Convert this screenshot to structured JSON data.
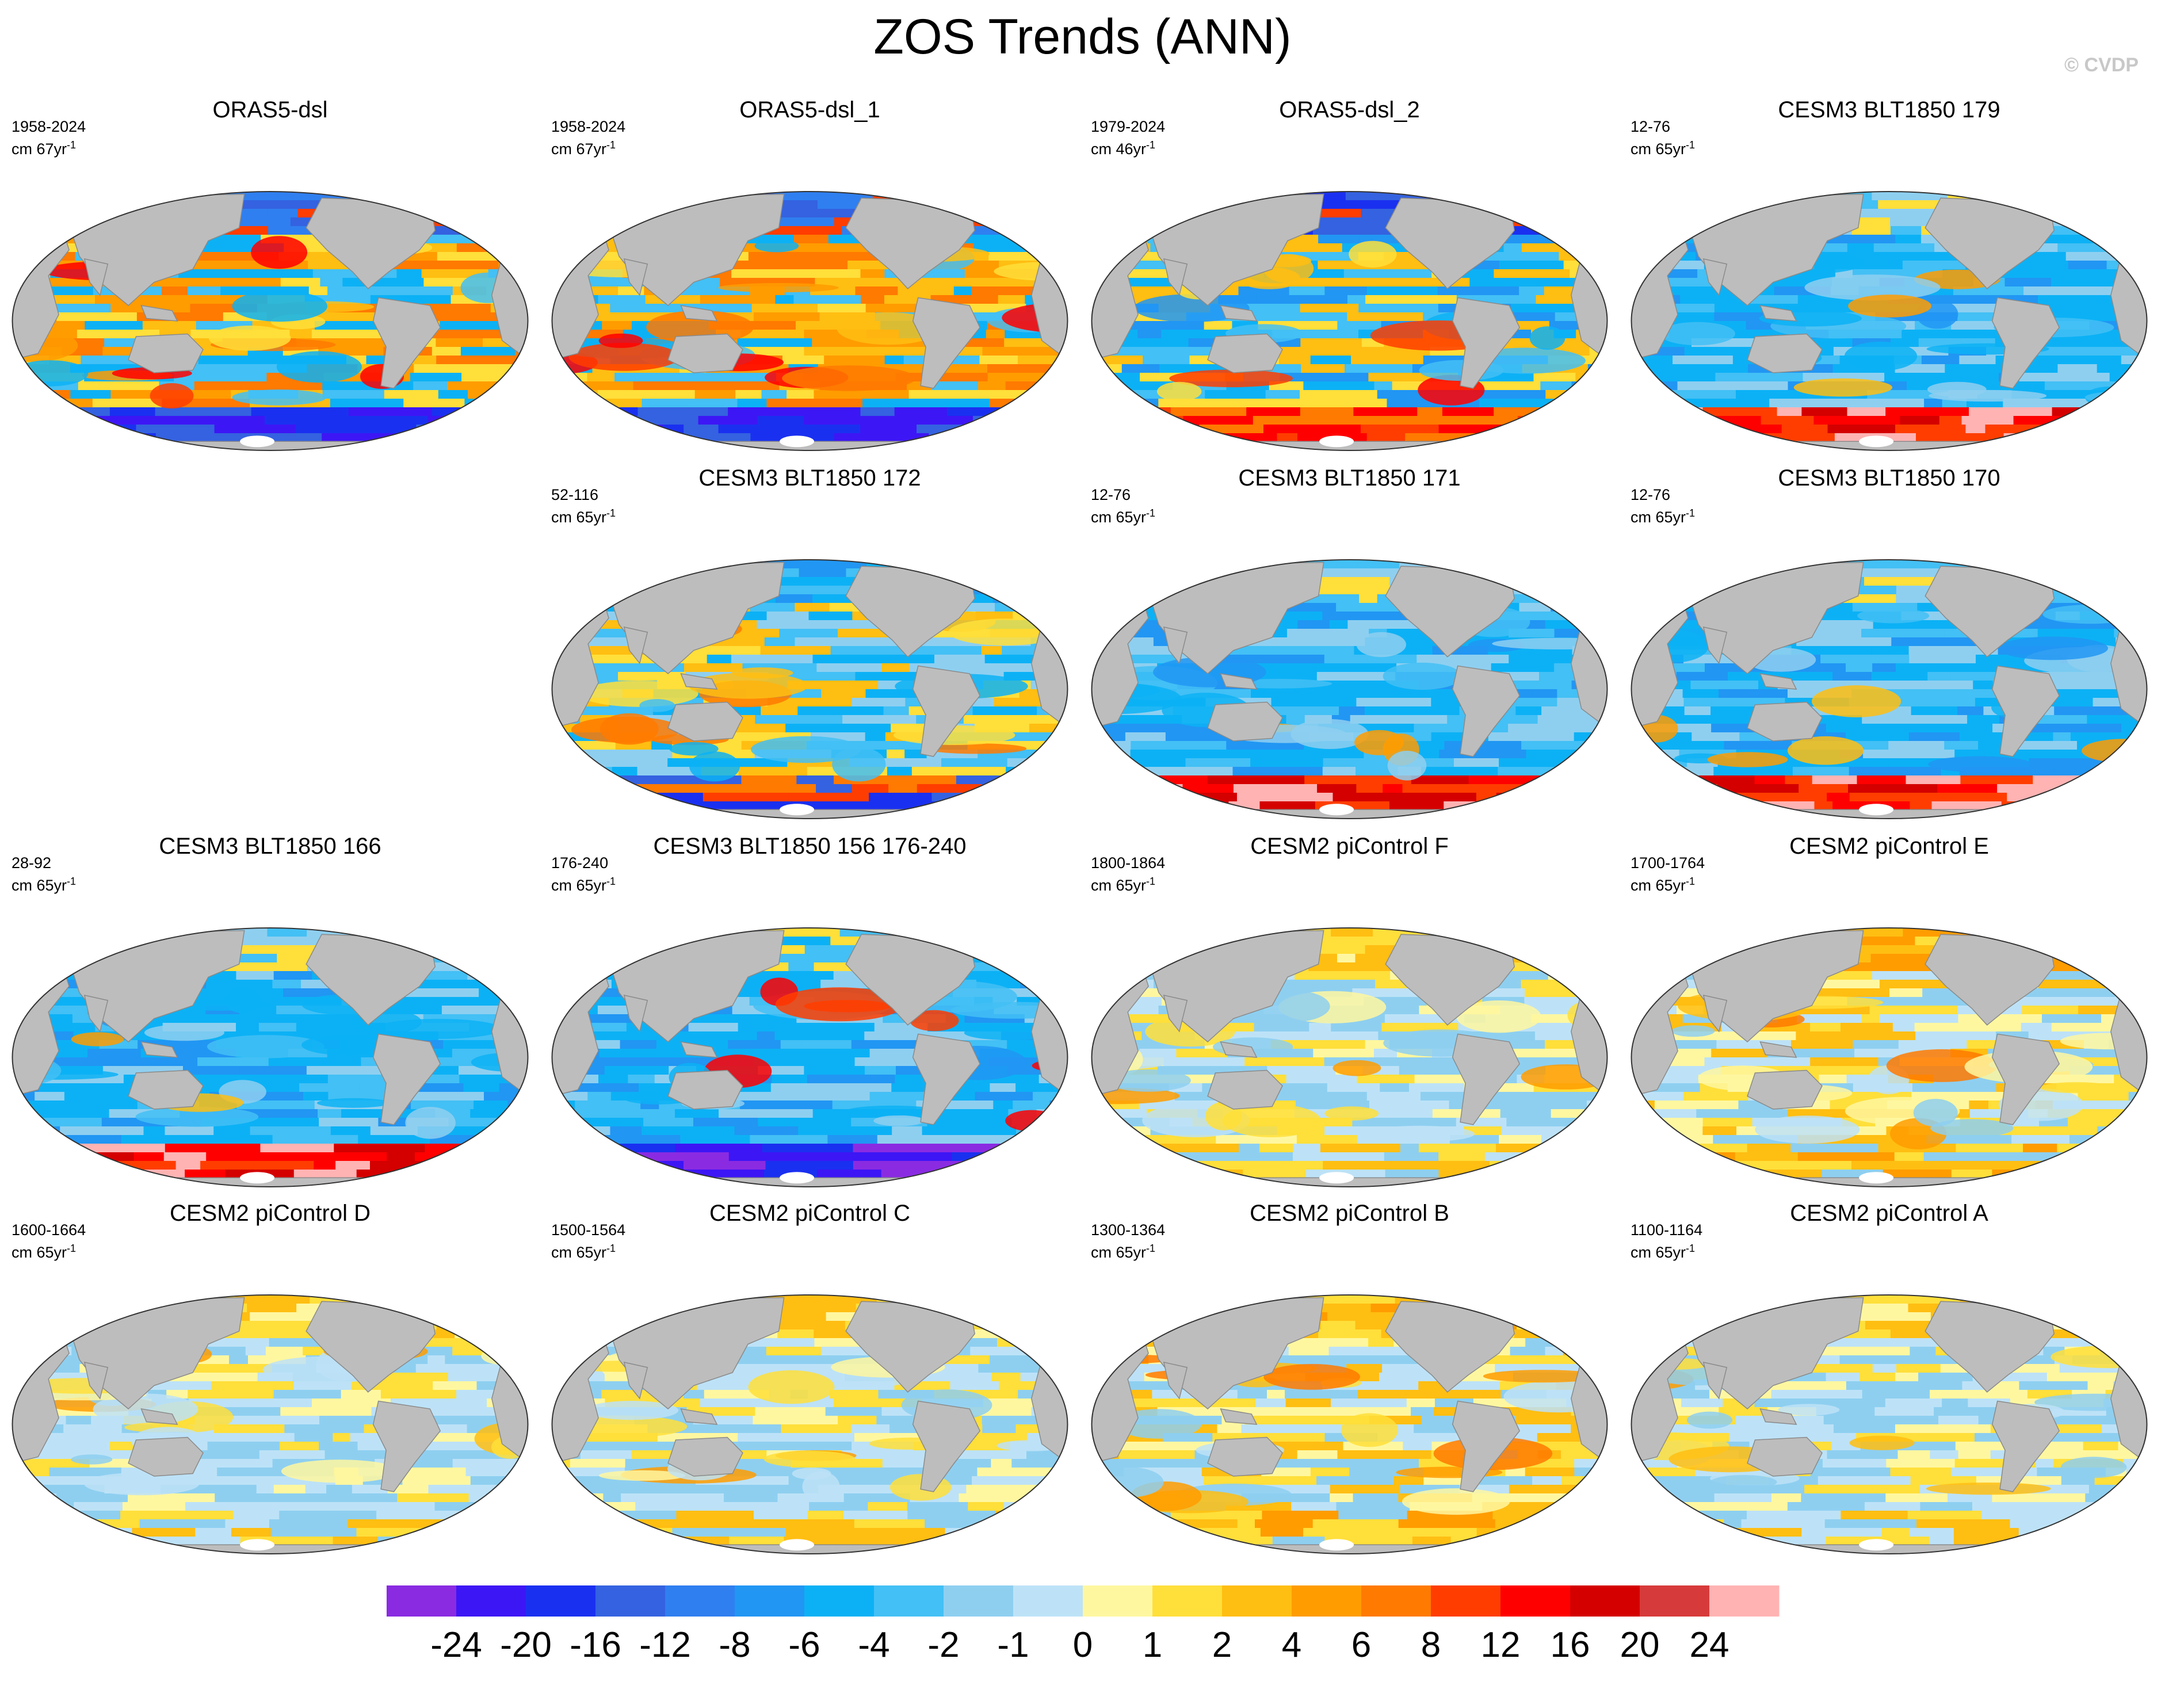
{
  "title": "ZOS Trends (ANN)",
  "watermark": "© CVDP",
  "colors": {
    "land": "#bdbdbd",
    "ocean_default": "#7cc6f2",
    "antarctic_ice": "#ffffff"
  },
  "panels": [
    {
      "title": "ORAS5-dsl",
      "years": "1958-2024",
      "units": "cm 67yr",
      "units_sup": "-1",
      "pattern": "oras5"
    },
    {
      "title": "ORAS5-dsl_1",
      "years": "1958-2024",
      "units": "cm 67yr",
      "units_sup": "-1",
      "pattern": "oras5"
    },
    {
      "title": "ORAS5-dsl_2",
      "years": "1979-2024",
      "units": "cm 46yr",
      "units_sup": "-1",
      "pattern": "oras5b"
    },
    {
      "title": "CESM3 BLT1850 179",
      "years": "12-76",
      "units": "cm 65yr",
      "units_sup": "-1",
      "pattern": "cesm3_blue_redsouth"
    },
    {
      "title": "CESM3 BLT1850 172",
      "years": "52-116",
      "units": "cm 65yr",
      "units_sup": "-1",
      "pattern": "cesm3_yellowwest"
    },
    {
      "title": "CESM3 BLT1850 171",
      "years": "12-76",
      "units": "cm 65yr",
      "units_sup": "-1",
      "pattern": "cesm3_blue_redsouth"
    },
    {
      "title": "CESM3 BLT1850 170",
      "years": "12-76",
      "units": "cm 65yr",
      "units_sup": "-1",
      "pattern": "cesm3_blue_redsouth"
    },
    {
      "title": "CESM3 BLT1850 166",
      "years": "28-92",
      "units": "cm 65yr",
      "units_sup": "-1",
      "pattern": "cesm3_blue_redsouth"
    },
    {
      "title": "CESM3 BLT1850 156 176-240",
      "years": "176-240",
      "units": "cm 65yr",
      "units_sup": "-1",
      "pattern": "cesm3_blue_purplesouth"
    },
    {
      "title": "CESM2 piControl F",
      "years": "1800-1864",
      "units": "cm 65yr",
      "units_sup": "-1",
      "pattern": "cesm2_mixed"
    },
    {
      "title": "CESM2 piControl E",
      "years": "1700-1764",
      "units": "cm 65yr",
      "units_sup": "-1",
      "pattern": "cesm2_warm"
    },
    {
      "title": "CESM2 piControl D",
      "years": "1600-1664",
      "units": "cm 65yr",
      "units_sup": "-1",
      "pattern": "cesm2_mixed"
    },
    {
      "title": "CESM2 piControl C",
      "years": "1500-1564",
      "units": "cm 65yr",
      "units_sup": "-1",
      "pattern": "cesm2_mixed"
    },
    {
      "title": "CESM2 piControl B",
      "years": "1300-1364",
      "units": "cm 65yr",
      "units_sup": "-1",
      "pattern": "cesm2_warm"
    },
    {
      "title": "CESM2 piControl A",
      "years": "1100-1164",
      "units": "cm 65yr",
      "units_sup": "-1",
      "pattern": "cesm2_mixed"
    }
  ],
  "colorbar": {
    "colors": [
      "#8a2be2",
      "#3d16f5",
      "#1a30f0",
      "#3462e0",
      "#2f7ff0",
      "#2196f3",
      "#0cb1f5",
      "#43c0f5",
      "#8ecff0",
      "#bde2f7",
      "#fff7a0",
      "#ffdf3a",
      "#ffbe12",
      "#ff9c00",
      "#ff7a00",
      "#ff3d00",
      "#ff0000",
      "#d40000",
      "#d73a3a",
      "#ffb3b3"
    ],
    "labels": [
      "-24",
      "-20",
      "-16",
      "-12",
      "-8",
      "-6",
      "-4",
      "-2",
      "-1",
      "0",
      "1",
      "2",
      "4",
      "6",
      "8",
      "12",
      "16",
      "20",
      "24"
    ]
  }
}
